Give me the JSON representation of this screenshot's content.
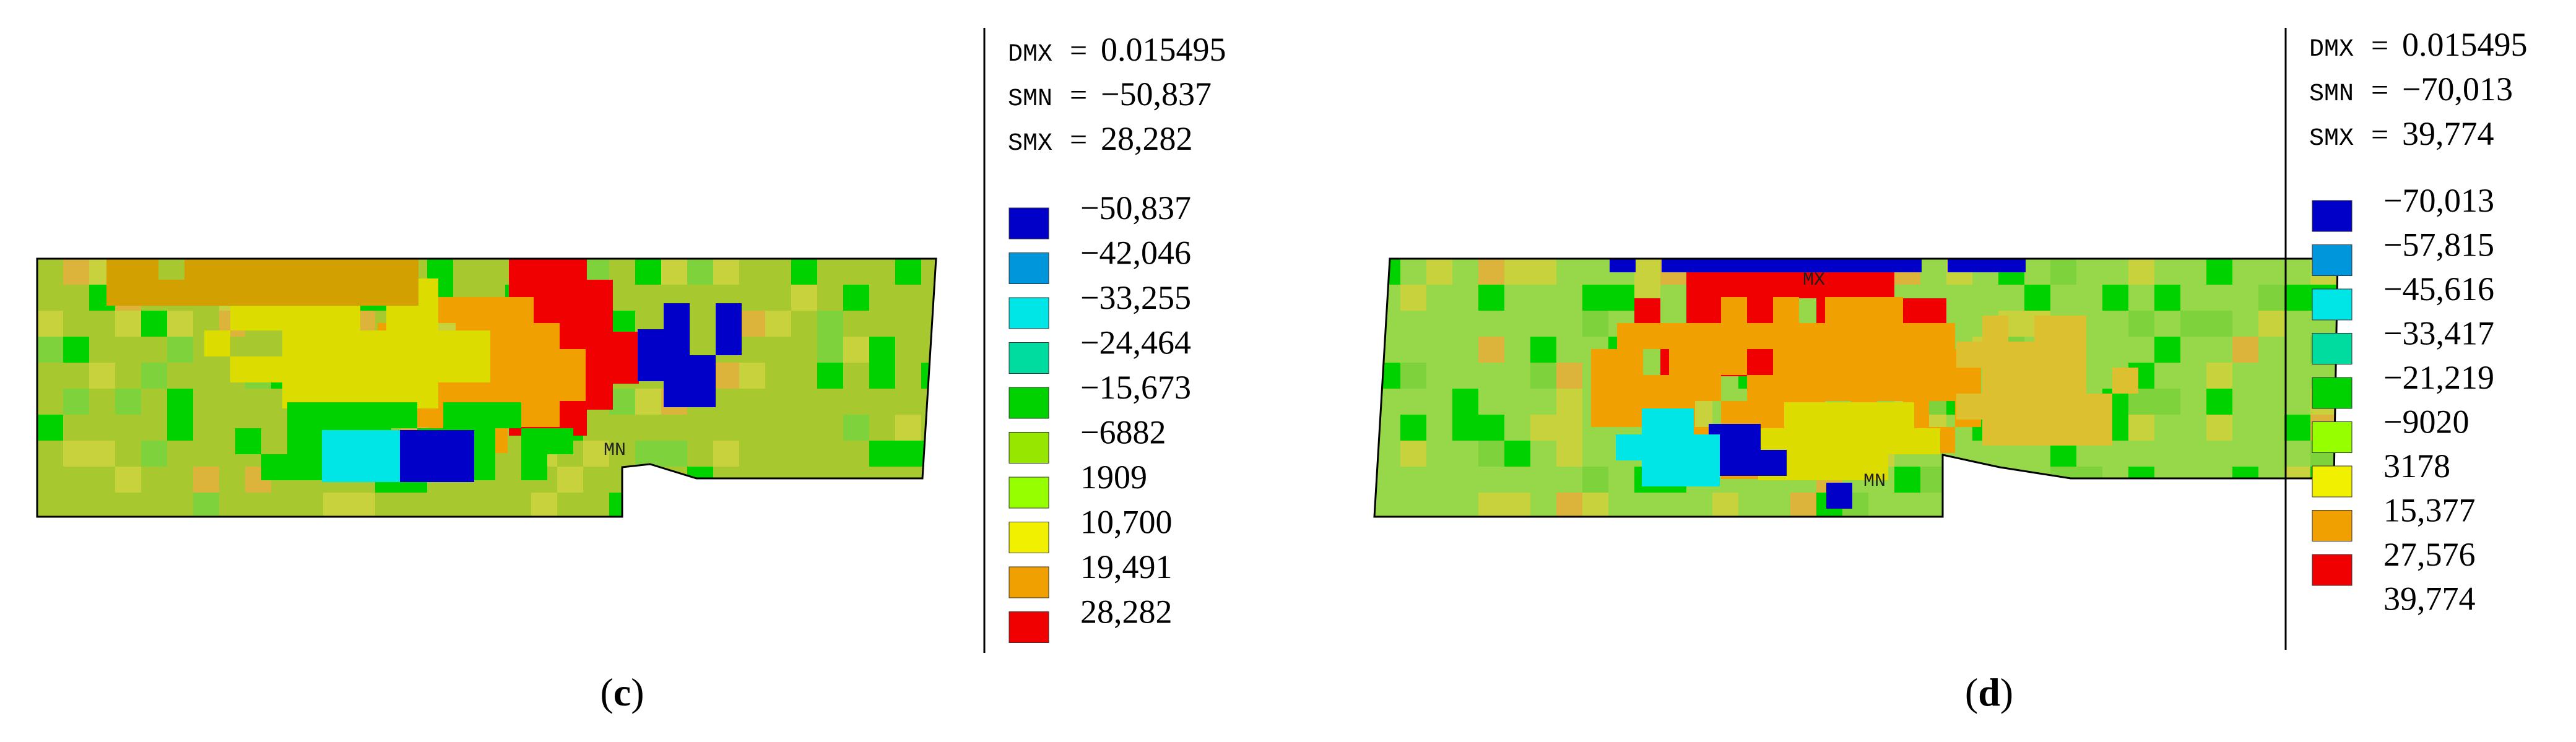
{
  "panels": [
    {
      "id": "c",
      "caption_open": "(",
      "caption_letter": "c",
      "caption_close": ")",
      "stats": [
        {
          "key": "DMX",
          "eq": "=",
          "value": "0.015495"
        },
        {
          "key": "SMN",
          "eq": "=",
          "value": "−50,837"
        },
        {
          "key": "SMX",
          "eq": "=",
          "value": "28,282"
        }
      ],
      "legend": [
        {
          "color": "#0000c8",
          "label": "−50,837"
        },
        {
          "color": "#0096dc",
          "label": "−42,046"
        },
        {
          "color": "#00e6e6",
          "label": "−33,255"
        },
        {
          "color": "#00dca0",
          "label": "−24,464"
        },
        {
          "color": "#00d200",
          "label": "−15,673"
        },
        {
          "color": "#96e600",
          "label": "−6882"
        },
        {
          "color": "#96ff00",
          "label": "1909"
        },
        {
          "color": "#f0f000",
          "label": "10,700"
        },
        {
          "color": "#f0a000",
          "label": "19,491"
        },
        {
          "color": "#f00000",
          "label": "28,282"
        }
      ],
      "markers": [
        {
          "label": "MN"
        }
      ]
    },
    {
      "id": "d",
      "caption_open": "(",
      "caption_letter": "d",
      "caption_close": ")",
      "stats": [
        {
          "key": "DMX",
          "eq": "=",
          "value": "0.015495"
        },
        {
          "key": "SMN",
          "eq": "=",
          "value": "−70,013"
        },
        {
          "key": "SMX",
          "eq": "=",
          "value": "39,774"
        }
      ],
      "legend": [
        {
          "color": "#0000c8",
          "label": "−70,013"
        },
        {
          "color": "#0096dc",
          "label": "−57,815"
        },
        {
          "color": "#00e6e6",
          "label": "−45,616"
        },
        {
          "color": "#00dca0",
          "label": "−33,417"
        },
        {
          "color": "#00d200",
          "label": "−21,219"
        },
        {
          "color": "#96ff00",
          "label": "−9020"
        },
        {
          "color": "#f0f000",
          "label": "3178"
        },
        {
          "color": "#f0a000",
          "label": "15,377"
        },
        {
          "color": "#f00000",
          "label": "27,576"
        },
        {
          "label": "39,774"
        }
      ],
      "markers": [
        {
          "label": "MX"
        },
        {
          "label": "MN"
        }
      ]
    }
  ]
}
